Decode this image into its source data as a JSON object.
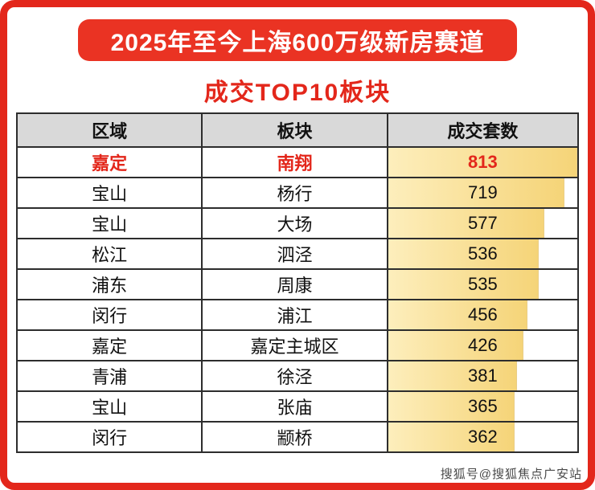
{
  "banner": {
    "title": "2025年至今上海600万级新房赛道"
  },
  "subtitle": "成交TOP10板块",
  "watermark": "搜狐号@搜狐焦点广安站",
  "colors": {
    "accent_red": "#e3271b",
    "banner_bg": "#ea3323",
    "header_bg": "#d9d9d9",
    "bar_gold_light": "#fdeebc",
    "bar_gold": "#f5d478",
    "table_border": "#2d2d2d"
  },
  "chart_data": {
    "type": "table",
    "title": "2025年至今上海600万级新房赛道 成交TOP10板块",
    "columns": [
      "区域",
      "板块",
      "成交套数"
    ],
    "rows": [
      {
        "region": "嘉定",
        "plate": "南翔",
        "count": 813,
        "highlight": true
      },
      {
        "region": "宝山",
        "plate": "杨行",
        "count": 719,
        "highlight": false
      },
      {
        "region": "宝山",
        "plate": "大场",
        "count": 577,
        "highlight": false
      },
      {
        "region": "松江",
        "plate": "泗泾",
        "count": 536,
        "highlight": false
      },
      {
        "region": "浦东",
        "plate": "周康",
        "count": 535,
        "highlight": false
      },
      {
        "region": "闵行",
        "plate": "浦江",
        "count": 456,
        "highlight": false
      },
      {
        "region": "嘉定",
        "plate": "嘉定主城区",
        "count": 426,
        "highlight": false
      },
      {
        "region": "青浦",
        "plate": "徐泾",
        "count": 381,
        "highlight": false
      },
      {
        "region": "宝山",
        "plate": "张庙",
        "count": 365,
        "highlight": false
      },
      {
        "region": "闵行",
        "plate": "颛桥",
        "count": 362,
        "highlight": false
      }
    ],
    "max_count": 813
  }
}
